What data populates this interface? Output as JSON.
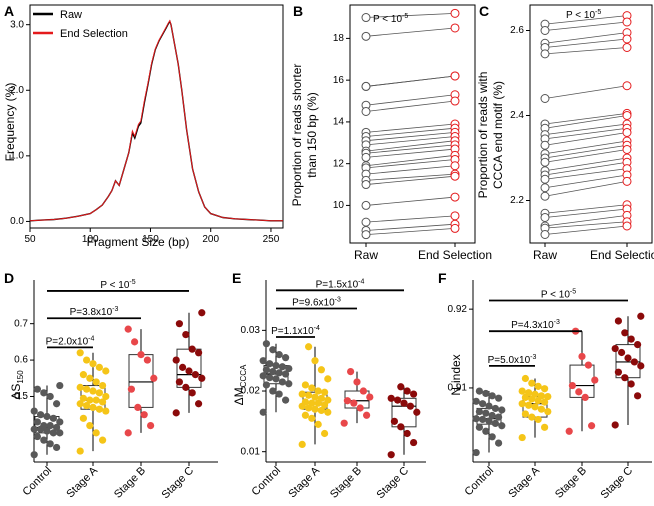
{
  "panels": {
    "A": {
      "letter": "A",
      "type": "line",
      "xlabel": "Fragment Size (bp)",
      "ylabel": "Frequency (%)",
      "xlim": [
        50,
        260
      ],
      "ylim": [
        -0.1,
        3.3
      ],
      "xticks": [
        50,
        100,
        150,
        200,
        250
      ],
      "yticks": [
        0.0,
        1.0,
        2.0,
        3.0
      ],
      "ytick_labels": [
        "0.0",
        "1.0",
        "2.0",
        "3.0"
      ],
      "legend": [
        {
          "name": "Raw",
          "color": "#000000"
        },
        {
          "name": "End Selection",
          "color": "#e41a1c"
        }
      ],
      "series": [
        {
          "name": "Raw",
          "color": "#000000",
          "x": [
            50,
            60,
            70,
            80,
            90,
            100,
            105,
            110,
            115,
            118,
            121,
            124,
            128,
            132,
            135,
            137,
            140,
            142,
            145,
            148,
            151,
            154,
            157,
            160,
            163,
            165,
            166,
            167,
            168,
            170,
            173,
            176,
            180,
            185,
            190,
            195,
            200,
            210,
            220,
            230,
            240,
            250,
            260
          ],
          "y": [
            0.01,
            0.02,
            0.03,
            0.05,
            0.08,
            0.12,
            0.18,
            0.25,
            0.38,
            0.47,
            0.62,
            0.55,
            0.8,
            1.05,
            1.35,
            1.27,
            1.45,
            1.5,
            1.82,
            2.1,
            2.4,
            2.62,
            2.75,
            2.85,
            2.95,
            3.02,
            3.05,
            3.0,
            2.9,
            2.7,
            2.4,
            2.0,
            1.4,
            0.8,
            0.45,
            0.22,
            0.12,
            0.06,
            0.04,
            0.03,
            0.02,
            0.01,
            0.01
          ]
        },
        {
          "name": "End Selection",
          "color": "#e41a1c",
          "x": [
            50,
            60,
            70,
            80,
            90,
            100,
            105,
            110,
            115,
            118,
            121,
            124,
            128,
            132,
            135,
            137,
            140,
            142,
            145,
            148,
            151,
            154,
            157,
            160,
            163,
            165,
            166,
            167,
            168,
            170,
            173,
            176,
            180,
            185,
            190,
            195,
            200,
            210,
            220,
            230,
            240,
            250,
            260
          ],
          "y": [
            0.01,
            0.02,
            0.03,
            0.05,
            0.08,
            0.12,
            0.18,
            0.25,
            0.38,
            0.47,
            0.62,
            0.55,
            0.8,
            1.05,
            1.38,
            1.3,
            1.48,
            1.53,
            1.85,
            2.12,
            2.42,
            2.63,
            2.76,
            2.86,
            2.96,
            3.03,
            3.06,
            3.0,
            2.9,
            2.7,
            2.4,
            2.0,
            1.4,
            0.8,
            0.45,
            0.22,
            0.12,
            0.06,
            0.04,
            0.03,
            0.02,
            0.01,
            0.01
          ]
        }
      ]
    },
    "B": {
      "letter": "B",
      "type": "paired",
      "ylabel_lines": [
        "Proportion of reads shorter",
        "than 150 bp (%)"
      ],
      "categories": [
        "Raw",
        "End Selection"
      ],
      "ylim": [
        8.2,
        19.6
      ],
      "yticks": [
        10,
        12,
        14,
        16,
        18
      ],
      "ytick_labels": [
        "10",
        "12",
        "14",
        "16",
        "18"
      ],
      "pvalue": "P < 10",
      "pvalue_exp": "-5",
      "pairs": [
        [
          19.0,
          19.2
        ],
        [
          18.1,
          18.5
        ],
        [
          15.7,
          16.2
        ],
        [
          15.7,
          16.2
        ],
        [
          14.8,
          15.3
        ],
        [
          14.5,
          15.0
        ],
        [
          13.5,
          13.9
        ],
        [
          13.3,
          13.7
        ],
        [
          13.1,
          13.5
        ],
        [
          12.9,
          13.3
        ],
        [
          12.6,
          13.1
        ],
        [
          12.5,
          12.9
        ],
        [
          12.3,
          12.7
        ],
        [
          11.9,
          12.4
        ],
        [
          11.8,
          12.2
        ],
        [
          11.5,
          11.9
        ],
        [
          11.2,
          11.5
        ],
        [
          11.0,
          11.4
        ],
        [
          10.0,
          10.4
        ],
        [
          9.2,
          9.5
        ],
        [
          8.8,
          9.1
        ],
        [
          8.6,
          8.9
        ]
      ]
    },
    "C": {
      "letter": "C",
      "type": "paired",
      "ylabel_lines": [
        "Proportion of reads with",
        "CCCA end motif (%)"
      ],
      "categories": [
        "Raw",
        "End Selection"
      ],
      "ylim": [
        2.1,
        2.66
      ],
      "yticks": [
        2.2,
        2.4,
        2.6
      ],
      "ytick_labels": [
        "2.2",
        "2.4",
        "2.6"
      ],
      "pvalue": "P < 10",
      "pvalue_exp": "-5",
      "pairs": [
        [
          2.615,
          2.635
        ],
        [
          2.6,
          2.62
        ],
        [
          2.57,
          2.595
        ],
        [
          2.56,
          2.58
        ],
        [
          2.545,
          2.56
        ],
        [
          2.44,
          2.47
        ],
        [
          2.38,
          2.405
        ],
        [
          2.37,
          2.4
        ],
        [
          2.355,
          2.38
        ],
        [
          2.345,
          2.37
        ],
        [
          2.33,
          2.36
        ],
        [
          2.31,
          2.34
        ],
        [
          2.3,
          2.33
        ],
        [
          2.29,
          2.32
        ],
        [
          2.27,
          2.3
        ],
        [
          2.26,
          2.29
        ],
        [
          2.25,
          2.275
        ],
        [
          2.23,
          2.26
        ],
        [
          2.21,
          2.245
        ],
        [
          2.17,
          2.19
        ],
        [
          2.16,
          2.18
        ],
        [
          2.14,
          2.165
        ],
        [
          2.135,
          2.15
        ],
        [
          2.12,
          2.14
        ]
      ]
    },
    "D": {
      "letter": "D",
      "type": "boxplot",
      "ylabel_main": "ΔS",
      "ylabel_sub": "150",
      "categories": [
        "Control",
        "Stage A",
        "Stage B",
        "Stage C"
      ],
      "ylim": [
        0.32,
        0.82
      ],
      "yticks": [
        0.5,
        0.6,
        0.7
      ],
      "ytick_labels": [
        "0.5",
        "0.6",
        "0.7"
      ],
      "colors": [
        "#595959",
        "#f5c518",
        "#e8474a",
        "#8b0a0a"
      ],
      "boxes": [
        {
          "whisker_low": 0.34,
          "q1": 0.4,
          "median": 0.415,
          "q3": 0.445,
          "whisker_high": 0.53
        },
        {
          "whisker_low": 0.35,
          "q1": 0.465,
          "median": 0.49,
          "q3": 0.53,
          "whisker_high": 0.62
        },
        {
          "whisker_low": 0.4,
          "q1": 0.47,
          "median": 0.54,
          "q3": 0.615,
          "whisker_high": 0.685
        },
        {
          "whisker_low": 0.455,
          "q1": 0.525,
          "median": 0.56,
          "q3": 0.63,
          "whisker_high": 0.73
        }
      ],
      "points": [
        [
          0.34,
          0.36,
          0.37,
          0.38,
          0.39,
          0.4,
          0.4,
          0.405,
          0.41,
          0.41,
          0.415,
          0.42,
          0.42,
          0.43,
          0.43,
          0.44,
          0.445,
          0.45,
          0.46,
          0.48,
          0.5,
          0.51,
          0.52,
          0.53
        ],
        [
          0.35,
          0.38,
          0.4,
          0.42,
          0.44,
          0.46,
          0.465,
          0.47,
          0.475,
          0.48,
          0.485,
          0.49,
          0.49,
          0.495,
          0.5,
          0.51,
          0.515,
          0.52,
          0.525,
          0.53,
          0.54,
          0.55,
          0.56,
          0.57,
          0.58,
          0.59,
          0.6,
          0.62
        ],
        [
          0.4,
          0.42,
          0.45,
          0.47,
          0.52,
          0.55,
          0.6,
          0.615,
          0.65,
          0.685
        ],
        [
          0.455,
          0.48,
          0.51,
          0.525,
          0.54,
          0.55,
          0.56,
          0.57,
          0.58,
          0.6,
          0.62,
          0.63,
          0.67,
          0.7,
          0.73
        ]
      ],
      "brackets": [
        {
          "from": 0,
          "to": 1,
          "label": "P=2.0x10",
          "exp": "-4",
          "y": 0.635
        },
        {
          "from": 0,
          "to": 2,
          "label": "P=3.8x10",
          "exp": "-3",
          "y": 0.715
        },
        {
          "from": 0,
          "to": 3,
          "label": "P < 10",
          "exp": "-5",
          "y": 0.79
        }
      ]
    },
    "E": {
      "letter": "E",
      "type": "boxplot",
      "ylabel_main": "ΔM",
      "ylabel_sub": "CCCA",
      "categories": [
        "Control",
        "Stage A",
        "Stage B",
        "Stage C"
      ],
      "ylim": [
        0.0083,
        0.0383
      ],
      "yticks": [
        0.01,
        0.02,
        0.03
      ],
      "ytick_labels": [
        "0.01",
        "0.02",
        "0.03"
      ],
      "colors": [
        "#595959",
        "#f5c518",
        "#e8474a",
        "#8b0a0a"
      ],
      "boxes": [
        {
          "whisker_low": 0.0165,
          "q1": 0.0212,
          "median": 0.0228,
          "q3": 0.0242,
          "whisker_high": 0.0278
        },
        {
          "whisker_low": 0.0112,
          "q1": 0.017,
          "median": 0.018,
          "q3": 0.0198,
          "whisker_high": 0.0273
        },
        {
          "whisker_low": 0.0147,
          "q1": 0.0172,
          "median": 0.0184,
          "q3": 0.02,
          "whisker_high": 0.0232
        },
        {
          "whisker_low": 0.0095,
          "q1": 0.0141,
          "median": 0.0175,
          "q3": 0.0188,
          "whisker_high": 0.0207
        }
      ],
      "points": [
        [
          0.0165,
          0.0185,
          0.0195,
          0.02,
          0.021,
          0.0212,
          0.0215,
          0.022,
          0.0222,
          0.0225,
          0.0228,
          0.023,
          0.0232,
          0.0235,
          0.0237,
          0.024,
          0.0242,
          0.0245,
          0.025,
          0.0255,
          0.026,
          0.0268,
          0.0278
        ],
        [
          0.0112,
          0.013,
          0.0145,
          0.0155,
          0.016,
          0.0165,
          0.0168,
          0.017,
          0.0172,
          0.0175,
          0.0177,
          0.018,
          0.018,
          0.0182,
          0.0185,
          0.0188,
          0.019,
          0.0193,
          0.0195,
          0.0198,
          0.02,
          0.0205,
          0.021,
          0.022,
          0.0235,
          0.025,
          0.0273
        ],
        [
          0.0147,
          0.016,
          0.0172,
          0.018,
          0.0184,
          0.019,
          0.02,
          0.0215,
          0.0232
        ],
        [
          0.0095,
          0.0115,
          0.013,
          0.0141,
          0.015,
          0.0165,
          0.0175,
          0.018,
          0.0185,
          0.0188,
          0.0195,
          0.02,
          0.0207
        ]
      ],
      "brackets": [
        {
          "from": 0,
          "to": 1,
          "label": "P=1.1x10",
          "exp": "-4",
          "y": 0.0289
        },
        {
          "from": 0,
          "to": 2,
          "label": "P=9.6x10",
          "exp": "-3",
          "y": 0.0336
        },
        {
          "from": 0,
          "to": 3,
          "label": "P=1.5x10",
          "exp": "-4",
          "y": 0.0366
        }
      ]
    },
    "F": {
      "letter": "F",
      "type": "boxplot",
      "ylabel_main": "N-index",
      "ylabel_sub": "",
      "categories": [
        "Control",
        "Stage A",
        "Stage B",
        "Stage C"
      ],
      "ylim": [
        0.9006,
        0.9237
      ],
      "yticks": [
        0.91,
        0.92
      ],
      "ytick_labels": [
        "0.91",
        "0.92"
      ],
      "colors": [
        "#595959",
        "#f5c518",
        "#e8474a",
        "#8b0a0a"
      ],
      "boxes": [
        {
          "whisker_low": 0.9018,
          "q1": 0.9054,
          "median": 0.9061,
          "q3": 0.9074,
          "whisker_high": 0.9096
        },
        {
          "whisker_low": 0.9037,
          "q1": 0.9063,
          "median": 0.908,
          "q3": 0.9089,
          "whisker_high": 0.9112
        },
        {
          "whisker_low": 0.9045,
          "q1": 0.9088,
          "median": 0.9103,
          "q3": 0.9129,
          "whisker_high": 0.9172
        },
        {
          "whisker_low": 0.9053,
          "q1": 0.9113,
          "median": 0.9133,
          "q3": 0.9155,
          "whisker_high": 0.9191
        }
      ],
      "points": [
        [
          0.9018,
          0.903,
          0.9038,
          0.9045,
          0.905,
          0.9052,
          0.9055,
          0.9058,
          0.906,
          0.9061,
          0.9063,
          0.9065,
          0.9068,
          0.907,
          0.9072,
          0.9074,
          0.9077,
          0.908,
          0.9083,
          0.9087,
          0.909,
          0.9093,
          0.9096
        ],
        [
          0.9037,
          0.905,
          0.906,
          0.9063,
          0.9067,
          0.907,
          0.9073,
          0.9076,
          0.9078,
          0.908,
          0.9082,
          0.9084,
          0.9086,
          0.9088,
          0.9089,
          0.909,
          0.9092,
          0.9094,
          0.9096,
          0.9099,
          0.9102,
          0.9106,
          0.9112
        ],
        [
          0.9045,
          0.9052,
          0.9088,
          0.9095,
          0.9103,
          0.911,
          0.9129,
          0.914,
          0.9172
        ],
        [
          0.9053,
          0.909,
          0.9105,
          0.9113,
          0.912,
          0.9128,
          0.9133,
          0.9138,
          0.9145,
          0.915,
          0.9155,
          0.9162,
          0.917,
          0.9185,
          0.9191
        ]
      ],
      "brackets": [
        {
          "from": 0,
          "to": 1,
          "label": "P=5.0x10",
          "exp": "-3",
          "y": 0.9128
        },
        {
          "from": 0,
          "to": 2,
          "label": "P=4.3x10",
          "exp": "-3",
          "y": 0.9172
        },
        {
          "from": 0,
          "to": 3,
          "label": "P < 10",
          "exp": "-5",
          "y": 0.9211
        }
      ]
    }
  }
}
